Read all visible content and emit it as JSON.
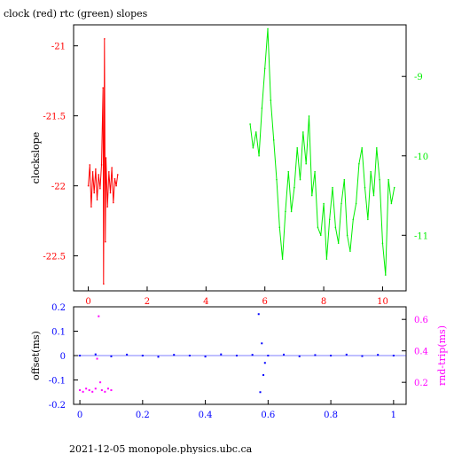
{
  "title": "clock (red) rtc (green) slopes",
  "footer": "2021-12-05  monopole.physics.ubc.ca",
  "colors": {
    "clock": "#ff0000",
    "rtc": "#00ee00",
    "offset": "#0000ff",
    "rndtrip": "#ff00ff",
    "frame": "#000000"
  },
  "chart_data": [
    {
      "type": "line",
      "title": "clock (red) rtc (green) slopes",
      "ylabel": "clockslope",
      "xlim": [
        -0.5,
        10.8
      ],
      "ylim": [
        -22.75,
        -20.85
      ],
      "y2lim": [
        -11.7,
        -8.35
      ],
      "xticks": [
        "0",
        "2",
        "4",
        "6",
        "8",
        "10"
      ],
      "xtick_values": [
        0,
        2,
        4,
        6,
        8,
        10
      ],
      "yticks": [
        "-21",
        "-21.5",
        "-22",
        "-22.5"
      ],
      "ytick_values": [
        -21,
        -21.5,
        -22,
        -22.5
      ],
      "y2ticks": [
        "-9",
        "-10",
        "-11"
      ],
      "y2tick_values": [
        -9,
        -10,
        -11
      ],
      "series": [
        {
          "name": "clock",
          "axis": "left",
          "x": [
            0.0,
            0.05,
            0.1,
            0.15,
            0.2,
            0.25,
            0.3,
            0.35,
            0.4,
            0.45,
            0.5,
            0.52,
            0.55,
            0.58,
            0.6,
            0.65,
            0.7,
            0.75,
            0.8,
            0.85,
            0.9,
            0.95,
            1.0
          ],
          "y": [
            -22.0,
            -21.85,
            -22.15,
            -21.9,
            -22.05,
            -21.88,
            -22.1,
            -21.92,
            -22.02,
            -21.85,
            -21.3,
            -22.7,
            -20.95,
            -22.4,
            -21.8,
            -22.15,
            -21.9,
            -22.05,
            -21.87,
            -22.12,
            -21.95,
            -22.0,
            -21.92
          ]
        },
        {
          "name": "rtc",
          "axis": "right",
          "x": [
            5.5,
            5.6,
            5.7,
            5.8,
            5.9,
            6.0,
            6.1,
            6.2,
            6.3,
            6.4,
            6.5,
            6.6,
            6.7,
            6.8,
            6.9,
            7.0,
            7.1,
            7.2,
            7.3,
            7.4,
            7.5,
            7.6,
            7.7,
            7.8,
            7.9,
            8.0,
            8.1,
            8.2,
            8.3,
            8.4,
            8.5,
            8.6,
            8.7,
            8.8,
            8.9,
            9.0,
            9.1,
            9.2,
            9.3,
            9.4,
            9.5,
            9.6,
            9.7,
            9.8,
            9.9,
            10.0,
            10.1,
            10.2,
            10.3,
            10.4
          ],
          "y": [
            -9.6,
            -9.9,
            -9.7,
            -10.0,
            -9.4,
            -8.9,
            -8.4,
            -9.3,
            -9.8,
            -10.3,
            -10.9,
            -11.3,
            -10.7,
            -10.2,
            -10.7,
            -10.4,
            -9.9,
            -10.3,
            -9.7,
            -10.1,
            -9.5,
            -10.5,
            -10.2,
            -10.9,
            -11.0,
            -10.6,
            -11.3,
            -10.8,
            -10.4,
            -10.9,
            -11.1,
            -10.6,
            -10.3,
            -11.0,
            -11.2,
            -10.8,
            -10.6,
            -10.1,
            -9.9,
            -10.4,
            -10.8,
            -10.2,
            -10.5,
            -9.9,
            -10.3,
            -11.1,
            -11.5,
            -10.3,
            -10.6,
            -10.4
          ]
        }
      ]
    },
    {
      "type": "scatter",
      "ylabel": "offset(ms)",
      "y2label": "rnd-trip(ms)",
      "xlim": [
        -0.02,
        1.04
      ],
      "ylim": [
        -0.2,
        0.2
      ],
      "y2lim": [
        0.06,
        0.68
      ],
      "xticks": [
        "0",
        "0.2",
        "0.4",
        "0.6",
        "0.8",
        "1"
      ],
      "xtick_values": [
        0,
        0.2,
        0.4,
        0.6,
        0.8,
        1
      ],
      "yticks": [
        "0.2",
        "0.1",
        "0",
        "-0.1",
        "-0.2"
      ],
      "ytick_values": [
        0.2,
        0.1,
        0,
        -0.1,
        -0.2
      ],
      "y2ticks": [
        "0.6",
        "0.4",
        "0.2"
      ],
      "y2tick_values": [
        0.6,
        0.4,
        0.2
      ],
      "series": [
        {
          "name": "offset",
          "axis": "left",
          "x": [
            0.0,
            0.05,
            0.1,
            0.15,
            0.2,
            0.25,
            0.3,
            0.35,
            0.4,
            0.45,
            0.5,
            0.55,
            0.57,
            0.575,
            0.58,
            0.585,
            0.59,
            0.6,
            0.65,
            0.7,
            0.75,
            0.8,
            0.85,
            0.9,
            0.95,
            1.0
          ],
          "y": [
            0.0,
            0.005,
            -0.003,
            0.004,
            0.0,
            -0.005,
            0.003,
            0.0,
            -0.004,
            0.005,
            0.0,
            0.003,
            0.17,
            -0.15,
            0.05,
            -0.08,
            -0.03,
            0.0,
            0.004,
            -0.003,
            0.002,
            0.0,
            0.004,
            -0.002,
            0.003,
            0.0
          ]
        },
        {
          "name": "rnd-trip",
          "axis": "right",
          "x": [
            0.0,
            0.01,
            0.02,
            0.03,
            0.04,
            0.05,
            0.055,
            0.06,
            0.065,
            0.07,
            0.08,
            0.09,
            0.1
          ],
          "y": [
            0.15,
            0.14,
            0.16,
            0.15,
            0.14,
            0.16,
            0.35,
            0.62,
            0.2,
            0.15,
            0.14,
            0.16,
            0.15
          ]
        }
      ]
    }
  ]
}
